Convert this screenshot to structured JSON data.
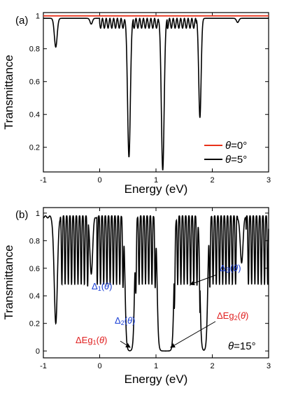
{
  "colors": {
    "red": "#e8321a",
    "black": "#000000",
    "blue": "#1a3fd6",
    "annot_red": "#e02020"
  },
  "chart_data": [
    {
      "type": "line",
      "panel_label": "(a)",
      "xlabel": "Energy (eV)",
      "ylabel": "Transmittance",
      "xlim": [
        -1,
        3
      ],
      "ylim": [
        0.05,
        1.02
      ],
      "xticks": [
        -1,
        0,
        1,
        2,
        3
      ],
      "yticks": [
        0.2,
        0.4,
        0.6,
        0.8,
        1
      ],
      "ytick_labels": [
        "0.2",
        "0.4",
        "0.6",
        "0.8",
        "1"
      ],
      "grid": false,
      "legend_position": "bottom-right",
      "series": [
        {
          "name": "θ=0°",
          "legend_theta": "θ",
          "legend_value": "=0°",
          "color": "#e8321a",
          "baseline": 1.0,
          "dips": []
        },
        {
          "name": "θ=5°",
          "legend_theta": "θ",
          "legend_value": "=5°",
          "color": "#000000",
          "baseline": 0.985,
          "dips": [
            {
              "x": -0.78,
              "min": 0.81,
              "w": 0.035
            },
            {
              "x": -0.15,
              "min": 0.95,
              "w": 0.03
            },
            {
              "x": 0.52,
              "min": 0.14,
              "w": 0.035
            },
            {
              "x": 1.12,
              "min": 0.06,
              "w": 0.035
            },
            {
              "x": 1.78,
              "min": 0.38,
              "w": 0.03
            },
            {
              "x": 2.45,
              "min": 0.96,
              "w": 0.03
            }
          ],
          "oscillation_bands": [
            [
              0.0,
              0.45
            ],
            [
              0.6,
              1.05
            ],
            [
              1.2,
              1.72
            ]
          ],
          "oscillation_depth": 0.06
        }
      ]
    },
    {
      "type": "line",
      "panel_label": "(b)",
      "xlabel": "Energy (eV)",
      "ylabel": "Transmittance",
      "xlim": [
        -1,
        3
      ],
      "ylim": [
        -0.05,
        1.04
      ],
      "xticks": [
        -1,
        0,
        1,
        2,
        3
      ],
      "yticks": [
        0,
        0.2,
        0.4,
        0.6,
        0.8,
        1
      ],
      "ytick_labels": [
        "0",
        "0.2",
        "0.4",
        "0.6",
        "0.8",
        "1"
      ],
      "grid": false,
      "panel_note_theta": "θ",
      "panel_note_value": "=15°",
      "series": [
        {
          "name": "θ=15°",
          "color": "#000000",
          "baseline": 0.98,
          "dips": [
            {
              "x": -0.78,
              "min": 0.21,
              "w": 0.04
            },
            {
              "x": -0.15,
              "min": 0.57,
              "w": 0.035
            },
            {
              "x": 2.52,
              "min": 0.65,
              "w": 0.035
            }
          ],
          "gaps": [
            [
              0.45,
              0.62
            ],
            [
              1.02,
              1.32
            ],
            [
              1.78,
              1.92
            ]
          ],
          "oscillation_bands": [
            [
              -0.05,
              0.45
            ],
            [
              0.62,
              1.02
            ],
            [
              1.32,
              1.78
            ],
            [
              1.92,
              2.45
            ],
            [
              -0.7,
              -0.2
            ],
            [
              2.6,
              3.0
            ]
          ]
        }
      ],
      "annotations": [
        {
          "id": "delta1",
          "pre": "Δ",
          "sub": "1",
          "theta": "θ",
          "color": "#1a3fd6"
        },
        {
          "id": "delta2",
          "pre": "Δ",
          "sub": "2",
          "theta": "θ",
          "color": "#1a3fd6"
        },
        {
          "id": "delta3",
          "pre": "Δ",
          "sub": "3",
          "theta": "θ",
          "color": "#1a3fd6"
        },
        {
          "id": "eg1",
          "pre": "ΔEg",
          "sub": "1",
          "theta": "θ",
          "color": "#e02020"
        },
        {
          "id": "eg2",
          "pre": "ΔEg",
          "sub": "2",
          "theta": "θ",
          "color": "#e02020"
        }
      ]
    }
  ]
}
